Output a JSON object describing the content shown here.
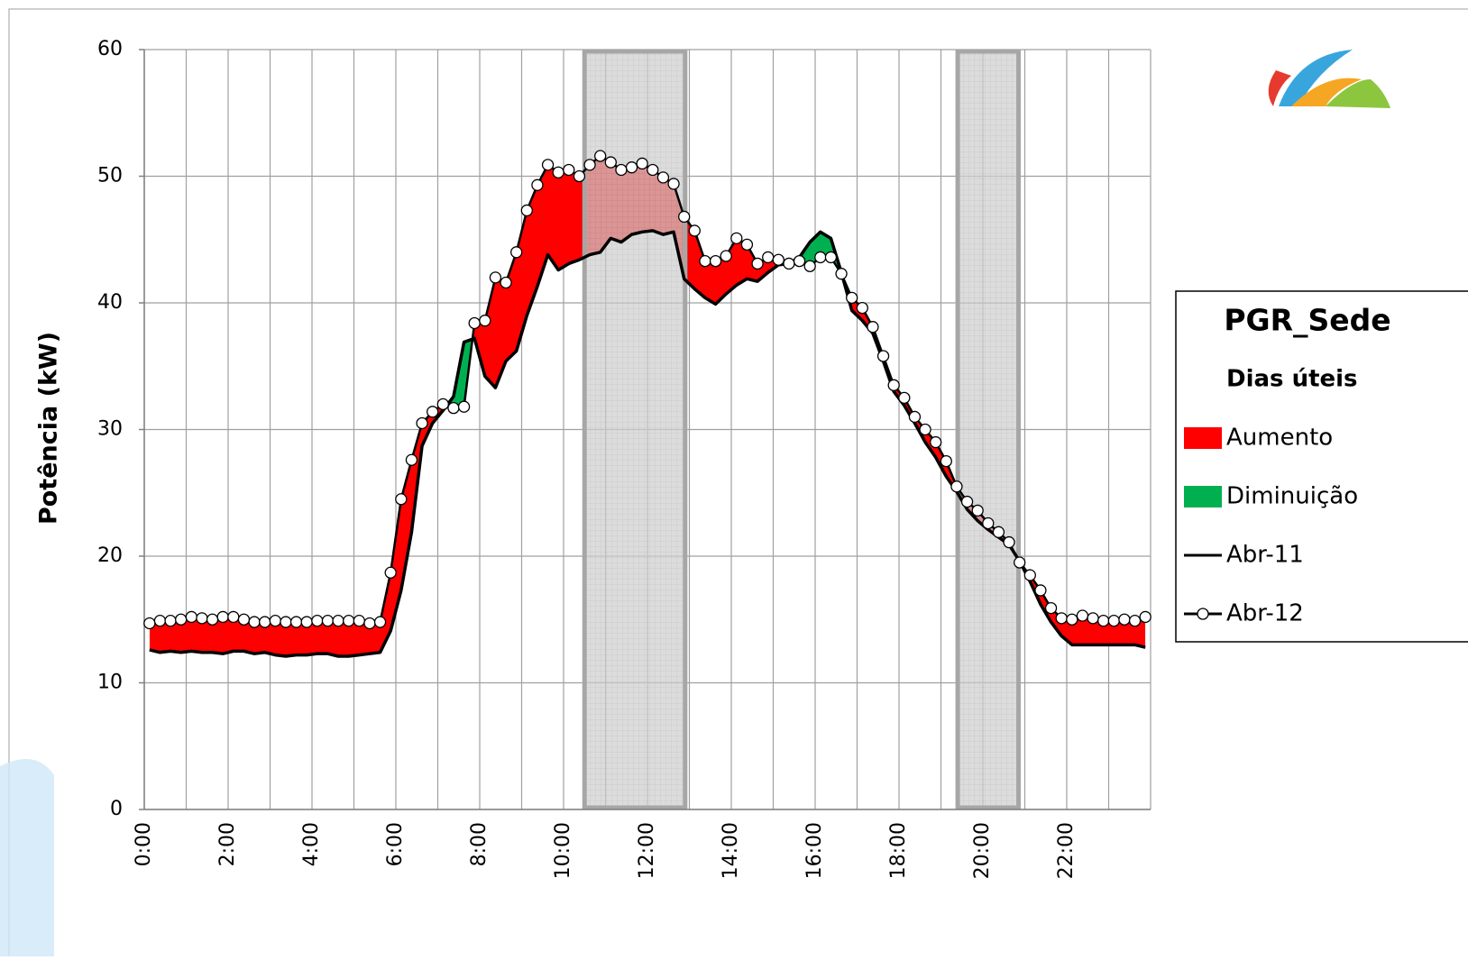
{
  "chart_data": {
    "type": "line",
    "y_label": "Potência (kW)",
    "legend_title": "PGR_Sede",
    "legend_subtitle": "Dias úteis",
    "ylim": [
      0,
      60
    ],
    "yticks": [
      0,
      10,
      20,
      30,
      40,
      50,
      60
    ],
    "grid": true,
    "legend_position": "right",
    "categories": [
      "0:00",
      null,
      null,
      null,
      null,
      null,
      null,
      null,
      "2:00",
      null,
      null,
      null,
      null,
      null,
      null,
      null,
      "4:00",
      null,
      null,
      null,
      null,
      null,
      null,
      null,
      "6:00",
      null,
      null,
      null,
      null,
      null,
      null,
      null,
      "8:00",
      null,
      null,
      null,
      null,
      null,
      null,
      null,
      "10:00",
      null,
      null,
      null,
      null,
      null,
      null,
      null,
      "12:00",
      null,
      null,
      null,
      null,
      null,
      null,
      null,
      "14:00",
      null,
      null,
      null,
      null,
      null,
      null,
      null,
      "16:00",
      null,
      null,
      null,
      null,
      null,
      null,
      null,
      "18:00",
      null,
      null,
      null,
      null,
      null,
      null,
      null,
      "20:00",
      null,
      null,
      null,
      null,
      null,
      null,
      null,
      "22:00",
      null,
      null,
      null,
      null,
      null,
      null,
      null
    ],
    "areas": [
      {
        "name": "Aumento",
        "color": "#ff0000"
      },
      {
        "name": "Diminuição",
        "color": "#00b050"
      }
    ],
    "shaded_ranges": [
      [
        10.5,
        12.9
      ],
      [
        19.4,
        20.85
      ]
    ],
    "series": [
      {
        "name": "Abr-11",
        "color": "#000000",
        "marker": false,
        "values": [
          12.6,
          12.4,
          12.5,
          12.4,
          12.5,
          12.4,
          12.4,
          12.3,
          12.5,
          12.5,
          12.3,
          12.4,
          12.2,
          12.1,
          12.2,
          12.2,
          12.3,
          12.3,
          12.1,
          12.1,
          12.2,
          12.3,
          12.4,
          14.1,
          17.3,
          21.9,
          28.7,
          30.5,
          31.5,
          32.6,
          36.9,
          37.2,
          34.2,
          33.3,
          35.4,
          36.2,
          39.0,
          41.3,
          43.8,
          42.6,
          43.1,
          43.4,
          43.8,
          44.0,
          45.1,
          44.8,
          45.4,
          45.6,
          45.7,
          45.4,
          45.6,
          41.9,
          41.1,
          40.4,
          39.9,
          40.7,
          41.4,
          41.9,
          41.7,
          42.4,
          43.0,
          43.1,
          43.6,
          44.8,
          45.6,
          45.1,
          42.4,
          39.4,
          38.6,
          37.6,
          35.4,
          33.0,
          31.9,
          30.5,
          29.0,
          27.8,
          26.3,
          25.1,
          23.7,
          22.8,
          22.1,
          21.5,
          20.9,
          19.6,
          18.0,
          16.2,
          14.8,
          13.7,
          13.0,
          13.0,
          13.0,
          13.0,
          13.0,
          13.0,
          13.0,
          12.8
        ]
      },
      {
        "name": "Abr-12",
        "color": "#000000",
        "marker": true,
        "values": [
          14.7,
          14.9,
          14.9,
          15.0,
          15.2,
          15.1,
          15.0,
          15.2,
          15.2,
          15.0,
          14.8,
          14.8,
          14.9,
          14.8,
          14.8,
          14.8,
          14.9,
          14.9,
          14.9,
          14.9,
          14.9,
          14.7,
          14.8,
          18.7,
          24.5,
          27.6,
          30.5,
          31.4,
          32.0,
          31.7,
          31.8,
          38.4,
          38.6,
          42.0,
          41.6,
          44.0,
          47.3,
          49.3,
          50.9,
          50.3,
          50.5,
          50.0,
          50.9,
          51.6,
          51.1,
          50.5,
          50.7,
          51.0,
          50.5,
          49.9,
          49.4,
          46.8,
          45.7,
          43.3,
          43.3,
          43.7,
          45.1,
          44.6,
          43.1,
          43.6,
          43.4,
          43.1,
          43.3,
          42.9,
          43.6,
          43.6,
          42.3,
          40.4,
          39.6,
          38.1,
          35.8,
          33.5,
          32.5,
          31.0,
          30.0,
          29.0,
          27.5,
          25.5,
          24.3,
          23.6,
          22.6,
          21.9,
          21.1,
          19.5,
          18.5,
          17.3,
          15.9,
          15.1,
          15.0,
          15.3,
          15.1,
          14.9,
          14.9,
          15.0,
          14.9,
          15.2
        ]
      }
    ]
  }
}
